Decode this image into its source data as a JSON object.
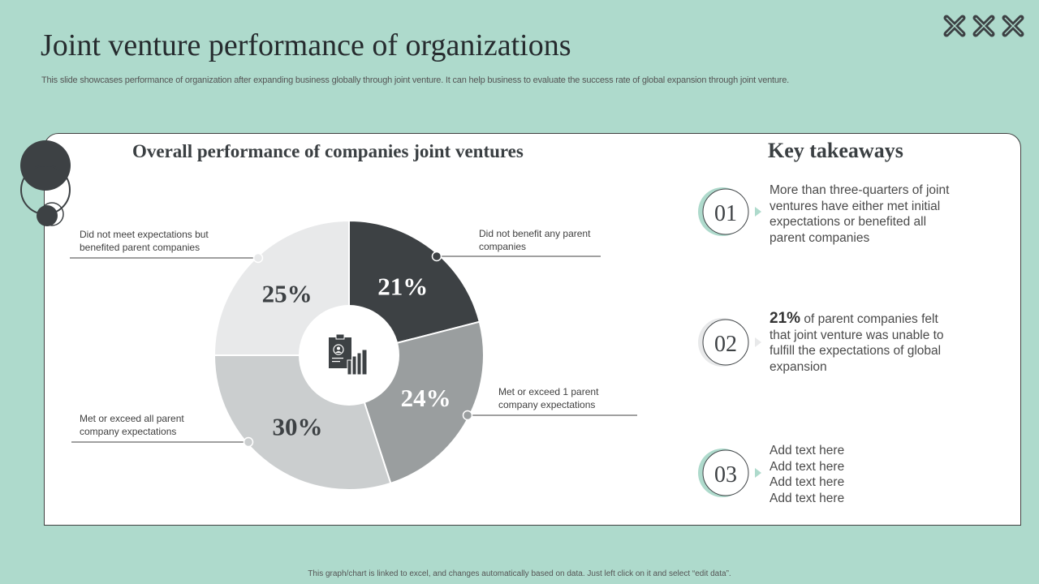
{
  "header": {
    "title": "Joint venture performance of organizations",
    "subtitle": "This slide showcases performance of organization after expanding business globally through joint venture. It can help business to evaluate the success rate of global expansion through joint venture."
  },
  "colors": {
    "background": "#aedacc",
    "dark": "#3d4144",
    "mid_gray": "#9a9e9f",
    "light_gray": "#cbcecf",
    "lightest_gray": "#e8e9ea",
    "accent": "#aedacc"
  },
  "chart_data": {
    "type": "pie",
    "title": "Overall performance of companies joint ventures",
    "categories": [
      "Did not benefit any parent companies",
      "Met or exceed 1 parent company expectations",
      "Met or exceed all parent company expectations",
      "Did not meet expectations but benefited parent companies"
    ],
    "values": [
      21,
      24,
      30,
      25
    ],
    "labels": [
      "21%",
      "24%",
      "30%",
      "25%"
    ],
    "colors": [
      "#3d4144",
      "#9a9e9f",
      "#cbcecf",
      "#e8e9ea"
    ],
    "center_icon": "report-chart-icon"
  },
  "callouts": {
    "c1": "Did not benefit any parent companies",
    "c2": "Met or exceed 1 parent company expectations",
    "c3": "Met or exceed all parent company expectations",
    "c4": "Did not meet expectations but benefited parent companies"
  },
  "takeaways": {
    "title": "Key takeaways",
    "items": [
      {
        "num": "01",
        "text": "More than three-quarters of joint ventures have either met initial expectations or benefited all parent companies"
      },
      {
        "num": "02",
        "highlight": "21%",
        "text": " of parent companies felt that joint venture was unable to fulfill the expectations of global expansion"
      },
      {
        "num": "03",
        "lines": [
          "Add text here",
          "Add text here",
          "Add text here",
          "Add text here"
        ]
      }
    ]
  },
  "footer": "This graph/chart is linked to excel, and changes automatically based on data. Just left click on it and select “edit data”."
}
